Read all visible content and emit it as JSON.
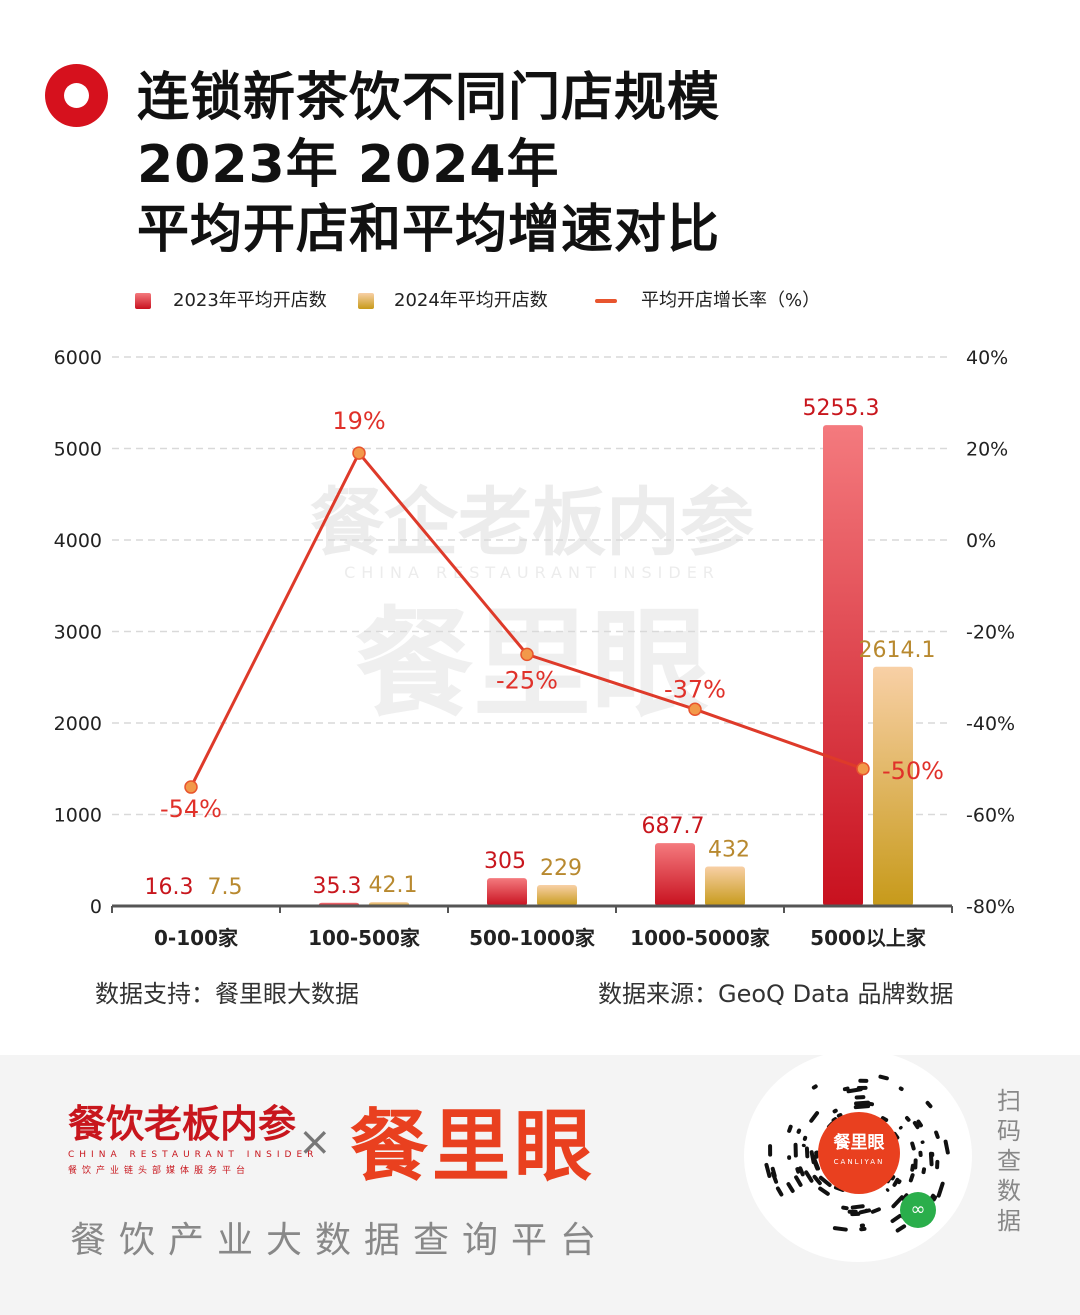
{
  "title": {
    "line1": "连锁新茶饮不同门店规模",
    "line2": "2023年 2024年",
    "line3": "平均开店和平均增速对比"
  },
  "legend": {
    "series1": "2023年平均开店数",
    "series2": "2024年平均开店数",
    "series3": "平均开店增长率（%）"
  },
  "colors": {
    "bar2023_top": "#f47a7e",
    "bar2023_bottom": "#c8111f",
    "bar2024_top": "#f8d0a6",
    "bar2024_bottom": "#c79a1a",
    "line": "#de3a2a",
    "label2023": "#c8161d",
    "label2024": "#b8892f",
    "label_rate": "#e0312a"
  },
  "chart_data": {
    "type": "bar",
    "categories": [
      "0-100家",
      "100-500家",
      "500-1000家",
      "1000-5000家",
      "5000以上家"
    ],
    "series": [
      {
        "name": "2023年平均开店数",
        "type": "bar",
        "axis": "left",
        "values": [
          16.3,
          35.3,
          305,
          687.7,
          5255.3
        ],
        "labels": [
          "16.3",
          "35.3",
          "305",
          "687.7",
          "5255.3"
        ]
      },
      {
        "name": "2024年平均开店数",
        "type": "bar",
        "axis": "left",
        "values": [
          7.5,
          42.1,
          229,
          432,
          2614.1
        ],
        "labels": [
          "7.5",
          "42.1",
          "229",
          "432",
          "2614.1"
        ]
      },
      {
        "name": "平均开店增长率（%）",
        "type": "line",
        "axis": "right",
        "values": [
          -54,
          19,
          -25,
          -37,
          -50
        ],
        "labels": [
          "-54%",
          "19%",
          "-25%",
          "-37%",
          "-50%"
        ]
      }
    ],
    "y_left": {
      "min": 0,
      "max": 6000,
      "ticks": [
        "0",
        "1000",
        "2000",
        "3000",
        "4000",
        "5000",
        "6000"
      ]
    },
    "y_right": {
      "min": -80,
      "max": 40,
      "ticks": [
        "-80%",
        "-60%",
        "-40%",
        "-20%",
        "0%",
        "20%",
        "40%"
      ]
    },
    "grid": "dashed horizontal",
    "legend_position": "top-left"
  },
  "source": {
    "support": "数据支持：餐里眼大数据",
    "origin": "数据来源：GeoQ Data 品牌数据"
  },
  "watermark": {
    "cn": "餐企老板内参",
    "en": "CHINA RESTAURANT INSIDER",
    "brand": "餐里眼"
  },
  "footer": {
    "logo1": "餐饮老板内参",
    "logo1_en": "CHINA RESTAURANT INSIDER",
    "logo1_tag": "餐饮产业链头部媒体服务平台",
    "times": "×",
    "logo2": "餐里眼",
    "slogan": "餐饮产业大数据查询平台",
    "qr_name": "餐里眼",
    "qr_en": "CANLIYAN",
    "scan": [
      "扫",
      "码",
      "查",
      "数",
      "据"
    ]
  }
}
